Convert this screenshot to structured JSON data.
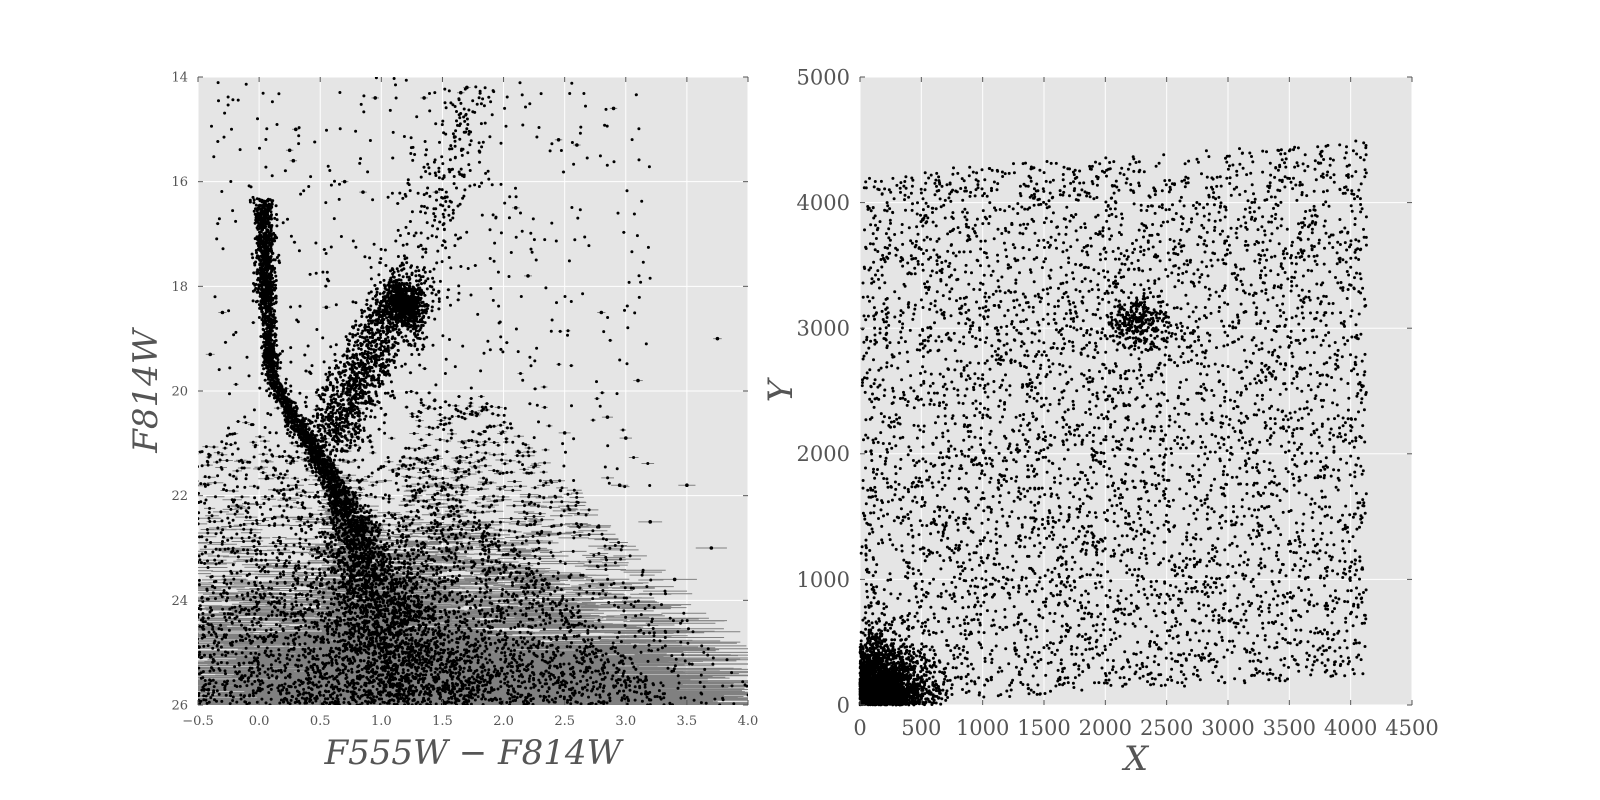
{
  "chart_data": [
    {
      "type": "scatter",
      "title": "",
      "xlabel": "F555W − F814W",
      "ylabel": "F814W",
      "xlim": [
        -0.5,
        4.0
      ],
      "ylim": [
        26,
        14
      ],
      "y_inverted": true,
      "grid": true,
      "background_color": "#e5e5e5",
      "point_color": "#000000",
      "errorbar_color": "#808080",
      "x_ticks": [
        "−0.5",
        "0.0",
        "0.5",
        "1.0",
        "1.5",
        "2.0",
        "2.5",
        "3.0",
        "3.5",
        "4.0"
      ],
      "y_ticks": [
        "14",
        "16",
        "18",
        "20",
        "22",
        "24",
        "26"
      ],
      "features": {
        "main_sequence_turnoff": {
          "color": 0.05,
          "mag": 17.5
        },
        "red_giant_clump": {
          "color": 1.2,
          "mag": 18.3
        },
        "main_sequence_bottom": {
          "color": 1.2,
          "mag": 26
        },
        "error_bars": "horizontal color error bars growing with magnitude"
      },
      "points": [
        [
          0.3,
          15.0
        ],
        [
          0.95,
          14.4
        ],
        [
          1.7,
          14.2
        ],
        [
          1.65,
          14.3
        ],
        [
          1.35,
          14.4
        ],
        [
          2.9,
          14.6
        ],
        [
          2.45,
          15.2
        ],
        [
          2.6,
          15.3
        ],
        [
          0.25,
          15.4
        ],
        [
          0.28,
          15.6
        ],
        [
          0.7,
          16.0
        ],
        [
          0.85,
          16.2
        ],
        [
          1.45,
          16.2
        ],
        [
          2.1,
          16.5
        ],
        [
          3.75,
          19.0
        ],
        [
          2.2,
          17.8
        ],
        [
          2.8,
          18.5
        ],
        [
          3.1,
          19.8
        ],
        [
          2.5,
          20.8
        ],
        [
          0.55,
          18.4
        ],
        [
          -0.3,
          18.5
        ],
        [
          -0.4,
          19.3
        ],
        [
          1.0,
          19.5
        ],
        [
          2.85,
          20.5
        ],
        [
          3.5,
          21.8
        ],
        [
          3.7,
          23.0
        ],
        [
          3.4,
          23.6
        ],
        [
          3.2,
          22.5
        ],
        [
          2.95,
          21.8
        ],
        [
          3.0,
          20.9
        ]
      ]
    },
    {
      "type": "scatter",
      "title": "",
      "xlabel": "X",
      "ylabel": "Y",
      "xlim": [
        0,
        4500
      ],
      "ylim": [
        0,
        5000
      ],
      "grid": true,
      "background_color": "#e5e5e5",
      "point_color": "#000000",
      "x_ticks": [
        "0",
        "500",
        "1000",
        "1500",
        "2000",
        "2500",
        "3000",
        "3500",
        "4000",
        "4500"
      ],
      "y_ticks": [
        "0",
        "1000",
        "2000",
        "3000",
        "4000",
        "5000"
      ],
      "footprint": {
        "corners": [
          [
            0,
            0
          ],
          [
            4130,
            230
          ],
          [
            4130,
            4500
          ],
          [
            30,
            4230
          ]
        ]
      }
    }
  ]
}
